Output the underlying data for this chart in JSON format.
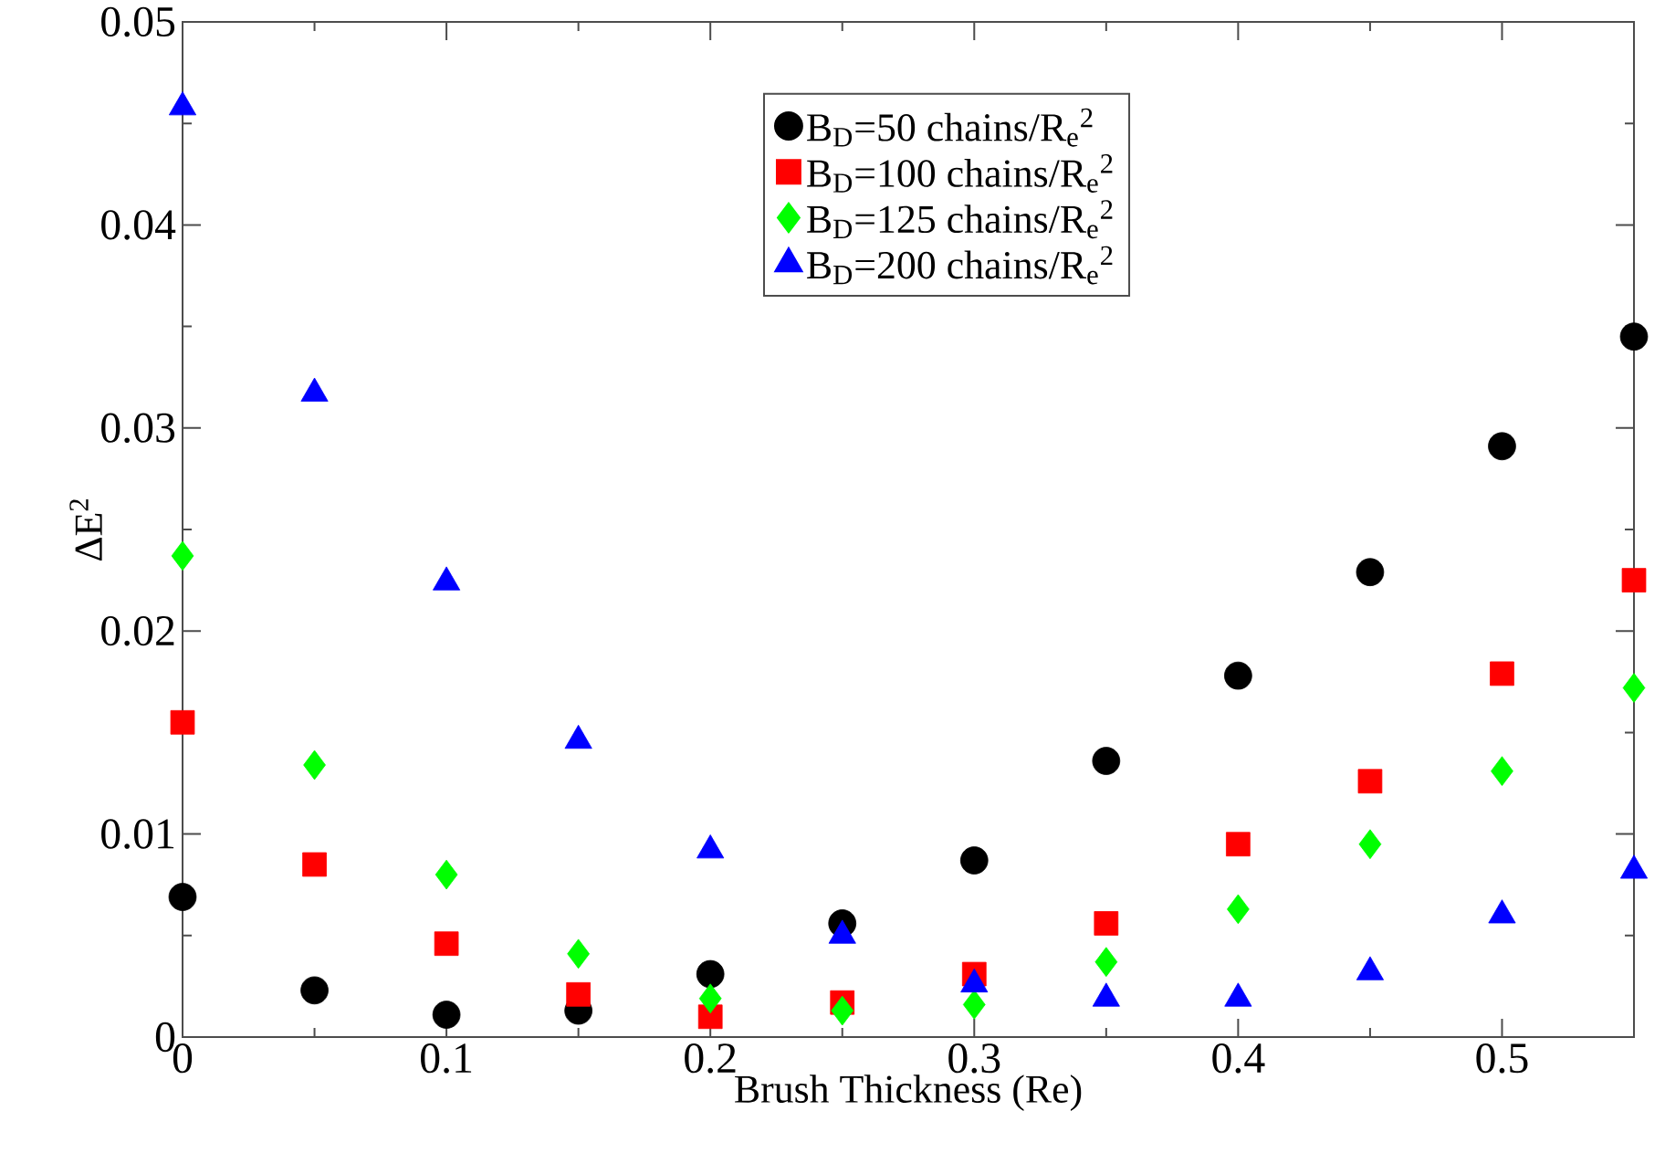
{
  "chart_data": {
    "type": "scatter",
    "xlabel": "Brush Thickness (Re)",
    "ylabel": "ΔE$^{2}$",
    "x": [
      0,
      0.05,
      0.1,
      0.15,
      0.2,
      0.25,
      0.3,
      0.35,
      0.4,
      0.45,
      0.5,
      0.55
    ],
    "xlim": [
      0,
      0.55
    ],
    "xticks": [
      0,
      0.1,
      0.2,
      0.3,
      0.4,
      0.5
    ],
    "ylim": [
      0,
      0.05
    ],
    "yticks": [
      0,
      0.01,
      0.02,
      0.03,
      0.04,
      0.05
    ],
    "grid": false,
    "legend": "top right",
    "series": [
      {
        "name": "B$_{D}$=50   chains/R$_{e}$$^{2}$",
        "color": "#000000",
        "marker": "circle",
        "values": [
          0.0069,
          0.0023,
          0.0011,
          0.0013,
          0.0031,
          0.0056,
          0.0087,
          0.0136,
          0.0178,
          0.0229,
          0.0291,
          0.0345
        ]
      },
      {
        "name": "B$_{D}$=100 chains/R$_{e}$$^{2}$",
        "color": "#ff0000",
        "marker": "square",
        "values": [
          0.0155,
          0.0085,
          0.0046,
          0.0021,
          0.001,
          0.0017,
          0.0031,
          0.0056,
          0.0095,
          0.0126,
          0.0179,
          0.0225
        ]
      },
      {
        "name": "B$_{D}$=125 chains/R$_{e}$$^{2}$",
        "color": "#00ff00",
        "marker": "diamond",
        "values": [
          0.0237,
          0.0134,
          0.008,
          0.0041,
          0.0019,
          0.0013,
          0.0016,
          0.0037,
          0.0063,
          0.0095,
          0.0131,
          0.0172
        ]
      },
      {
        "name": "B$_{D}$=200 chains/R$_{e}$$^{2}$",
        "color": "#0000ff",
        "marker": "triangle",
        "values": [
          0.0458,
          0.0317,
          0.0224,
          0.0146,
          0.0092,
          0.005,
          0.0026,
          0.0019,
          0.0019,
          0.0032,
          0.006,
          0.0082
        ]
      }
    ]
  }
}
